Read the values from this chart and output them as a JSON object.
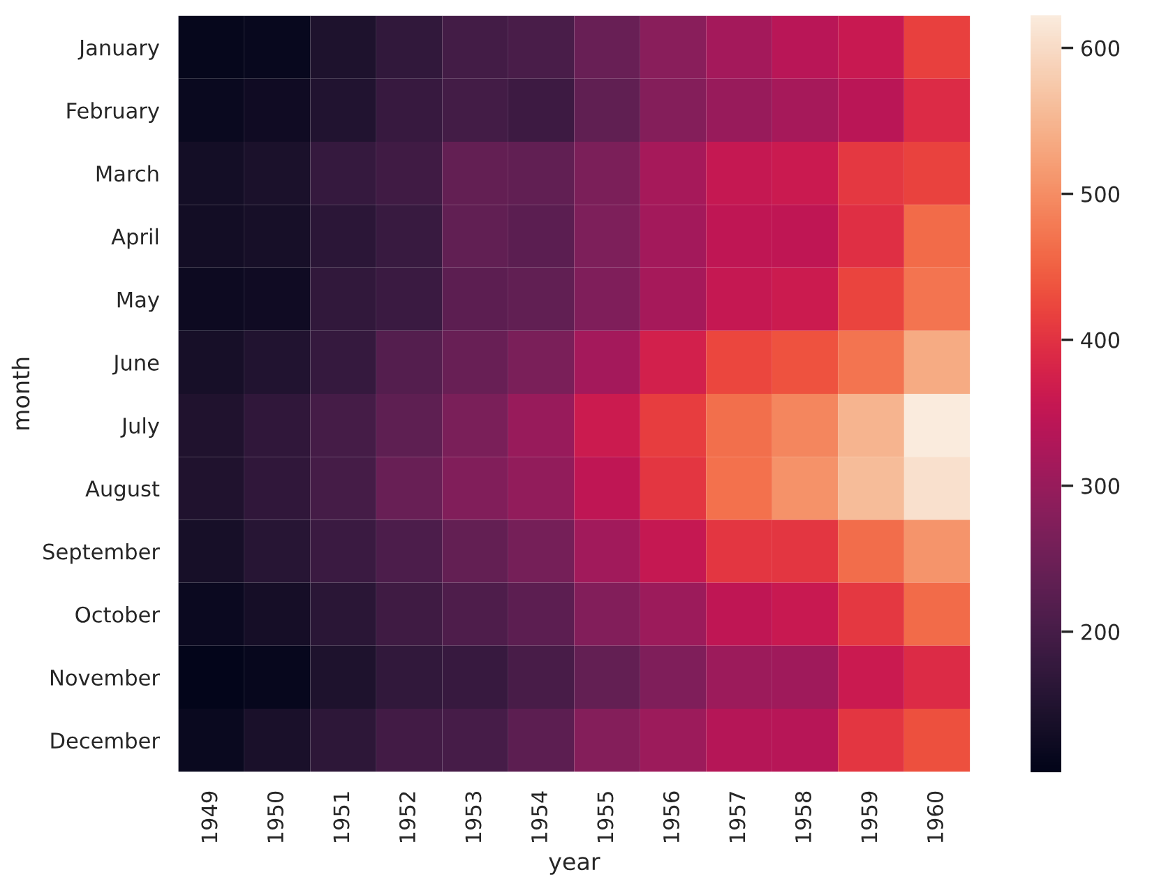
{
  "chart_data": {
    "type": "heatmap",
    "xlabel": "year",
    "ylabel": "month",
    "categories": [
      "1949",
      "1950",
      "1951",
      "1952",
      "1953",
      "1954",
      "1955",
      "1956",
      "1957",
      "1958",
      "1959",
      "1960"
    ],
    "y_categories": [
      "January",
      "February",
      "March",
      "April",
      "May",
      "June",
      "July",
      "August",
      "September",
      "October",
      "November",
      "December"
    ],
    "cells": [
      [
        112,
        115,
        145,
        171,
        196,
        204,
        242,
        284,
        315,
        340,
        360,
        417
      ],
      [
        118,
        126,
        150,
        180,
        196,
        188,
        233,
        277,
        301,
        318,
        342,
        391
      ],
      [
        132,
        141,
        178,
        193,
        236,
        235,
        267,
        317,
        356,
        362,
        406,
        419
      ],
      [
        129,
        135,
        163,
        181,
        235,
        227,
        269,
        313,
        348,
        348,
        396,
        461
      ],
      [
        121,
        125,
        172,
        183,
        229,
        234,
        270,
        318,
        355,
        363,
        420,
        472
      ],
      [
        135,
        149,
        178,
        218,
        243,
        264,
        315,
        374,
        422,
        435,
        472,
        535
      ],
      [
        148,
        170,
        199,
        230,
        264,
        302,
        364,
        413,
        465,
        491,
        548,
        622
      ],
      [
        148,
        170,
        199,
        242,
        272,
        293,
        347,
        405,
        467,
        505,
        559,
        606
      ],
      [
        136,
        158,
        184,
        209,
        237,
        259,
        312,
        355,
        404,
        404,
        463,
        508
      ],
      [
        119,
        133,
        162,
        191,
        211,
        229,
        274,
        306,
        347,
        359,
        407,
        461
      ],
      [
        104,
        114,
        146,
        172,
        180,
        203,
        237,
        271,
        305,
        310,
        362,
        390
      ],
      [
        118,
        140,
        166,
        194,
        201,
        229,
        278,
        306,
        336,
        337,
        405,
        432
      ]
    ],
    "clim": [
      104,
      622
    ],
    "cticks": [
      200,
      300,
      400,
      500,
      600
    ],
    "grid": false
  }
}
